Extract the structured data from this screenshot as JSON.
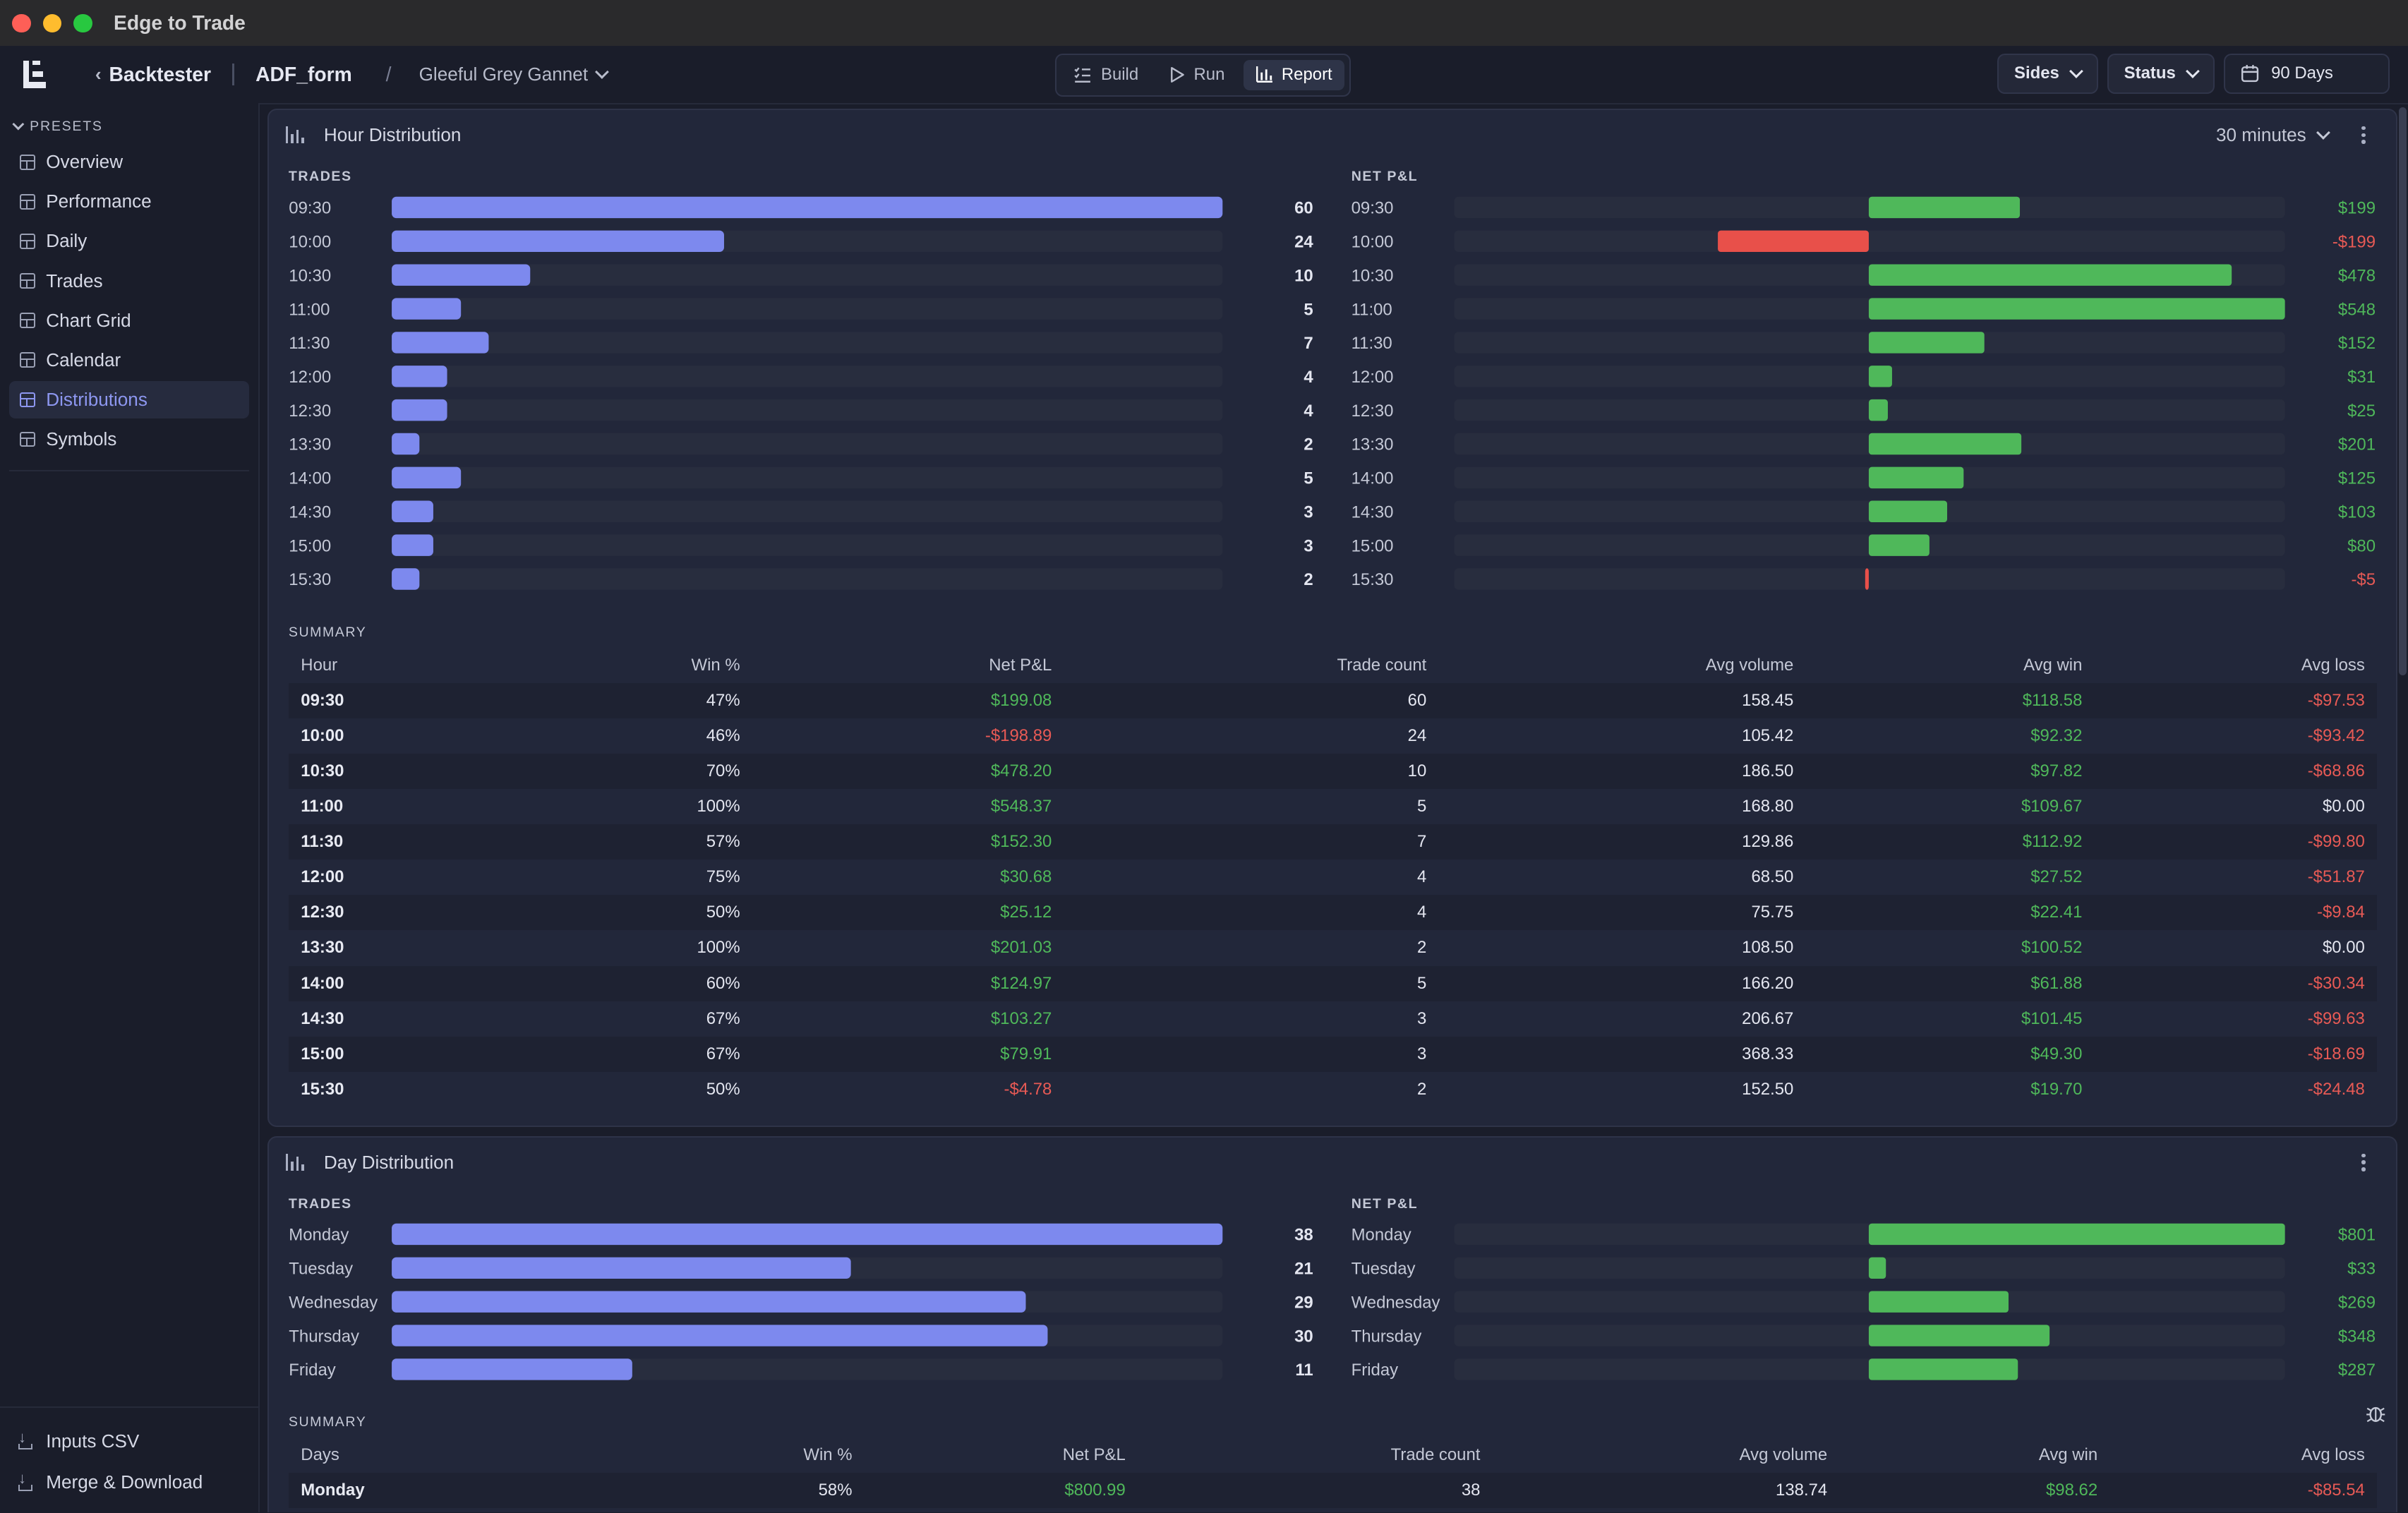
{
  "app": {
    "title": "Edge to Trade"
  },
  "header": {
    "back_label": "Backtester",
    "project": "ADF_form",
    "preset_name": "Gleeful Grey Gannet",
    "modes": [
      {
        "label": "Build",
        "icon": "list-check-icon"
      },
      {
        "label": "Run",
        "icon": "play-icon"
      },
      {
        "label": "Report",
        "icon": "bar-chart-icon",
        "active": true
      }
    ],
    "filters": {
      "sides": "Sides",
      "status": "Status",
      "date_range": "90 Days"
    }
  },
  "sidebar": {
    "section_title": "PRESETS",
    "items": [
      {
        "label": "Overview"
      },
      {
        "label": "Performance"
      },
      {
        "label": "Daily"
      },
      {
        "label": "Trades"
      },
      {
        "label": "Chart Grid"
      },
      {
        "label": "Calendar"
      },
      {
        "label": "Distributions",
        "active": true
      },
      {
        "label": "Symbols"
      }
    ],
    "bottom_actions": [
      {
        "label": "Inputs CSV"
      },
      {
        "label": "Merge & Download"
      }
    ]
  },
  "colors": {
    "trades_bar": "#7d89ee",
    "positive": "#4fb85a",
    "negative": "#e8504a",
    "track": "#282d3e"
  },
  "hour_panel": {
    "title": "Hour Distribution",
    "interval": "30 minutes",
    "trades_label": "TRADES",
    "pnl_label": "NET P&L",
    "summary_label": "SUMMARY",
    "table_columns": [
      "Hour",
      "Win %",
      "Net P&L",
      "Trade count",
      "Avg volume",
      "Avg win",
      "Avg loss"
    ],
    "table_rows": [
      [
        "09:30",
        "47%",
        "$199.08",
        "60",
        "158.45",
        "$118.58",
        "-$97.53"
      ],
      [
        "10:00",
        "46%",
        "-$198.89",
        "24",
        "105.42",
        "$92.32",
        "-$93.42"
      ],
      [
        "10:30",
        "70%",
        "$478.20",
        "10",
        "186.50",
        "$97.82",
        "-$68.86"
      ],
      [
        "11:00",
        "100%",
        "$548.37",
        "5",
        "168.80",
        "$109.67",
        "$0.00"
      ],
      [
        "11:30",
        "57%",
        "$152.30",
        "7",
        "129.86",
        "$112.92",
        "-$99.80"
      ],
      [
        "12:00",
        "75%",
        "$30.68",
        "4",
        "68.50",
        "$27.52",
        "-$51.87"
      ],
      [
        "12:30",
        "50%",
        "$25.12",
        "4",
        "75.75",
        "$22.41",
        "-$9.84"
      ],
      [
        "13:30",
        "100%",
        "$201.03",
        "2",
        "108.50",
        "$100.52",
        "$0.00"
      ],
      [
        "14:00",
        "60%",
        "$124.97",
        "5",
        "166.20",
        "$61.88",
        "-$30.34"
      ],
      [
        "14:30",
        "67%",
        "$103.27",
        "3",
        "206.67",
        "$101.45",
        "-$99.63"
      ],
      [
        "15:00",
        "67%",
        "$79.91",
        "3",
        "368.33",
        "$49.30",
        "-$18.69"
      ],
      [
        "15:30",
        "50%",
        "-$4.78",
        "2",
        "152.50",
        "$19.70",
        "-$24.48"
      ]
    ]
  },
  "day_panel": {
    "title": "Day Distribution",
    "trades_label": "TRADES",
    "pnl_label": "NET P&L",
    "summary_label": "SUMMARY",
    "table_columns": [
      "Days",
      "Win %",
      "Net P&L",
      "Trade count",
      "Avg volume",
      "Avg win",
      "Avg loss"
    ],
    "table_rows": [
      [
        "Monday",
        "58%",
        "$800.99",
        "38",
        "138.74",
        "$98.62",
        "-$85.54"
      ]
    ]
  },
  "chart_data": [
    {
      "type": "bar",
      "orientation": "horizontal",
      "title": "TRADES",
      "categories": [
        "09:30",
        "10:00",
        "10:30",
        "11:00",
        "11:30",
        "12:00",
        "12:30",
        "13:30",
        "14:00",
        "14:30",
        "15:00",
        "15:30"
      ],
      "values": [
        60,
        24,
        10,
        5,
        7,
        4,
        4,
        2,
        5,
        3,
        3,
        2
      ],
      "value_labels": [
        "60",
        "24",
        "10",
        "5",
        "7",
        "4",
        "4",
        "2",
        "5",
        "3",
        "3",
        "2"
      ]
    },
    {
      "type": "bar",
      "orientation": "horizontal",
      "title": "NET P&L",
      "categories": [
        "09:30",
        "10:00",
        "10:30",
        "11:00",
        "11:30",
        "12:00",
        "12:30",
        "13:30",
        "14:00",
        "14:30",
        "15:00",
        "15:30"
      ],
      "values": [
        199.08,
        -198.89,
        478.2,
        548.37,
        152.3,
        30.68,
        25.12,
        201.03,
        124.97,
        103.27,
        79.91,
        -4.78
      ],
      "value_labels": [
        "$199",
        "-$199",
        "$478",
        "$548",
        "$152",
        "$31",
        "$25",
        "$201",
        "$125",
        "$103",
        "$80",
        "-$5"
      ]
    },
    {
      "type": "bar",
      "orientation": "horizontal",
      "title": "TRADES",
      "categories": [
        "Monday",
        "Tuesday",
        "Wednesday",
        "Thursday",
        "Friday"
      ],
      "values": [
        38,
        21,
        29,
        30,
        11
      ],
      "value_labels": [
        "38",
        "21",
        "29",
        "30",
        "11"
      ]
    },
    {
      "type": "bar",
      "orientation": "horizontal",
      "title": "NET P&L",
      "categories": [
        "Monday",
        "Tuesday",
        "Wednesday",
        "Thursday",
        "Friday"
      ],
      "values": [
        800.99,
        33,
        269,
        348,
        287
      ],
      "value_labels": [
        "$801",
        "$33",
        "$269",
        "$348",
        "$287"
      ]
    }
  ]
}
